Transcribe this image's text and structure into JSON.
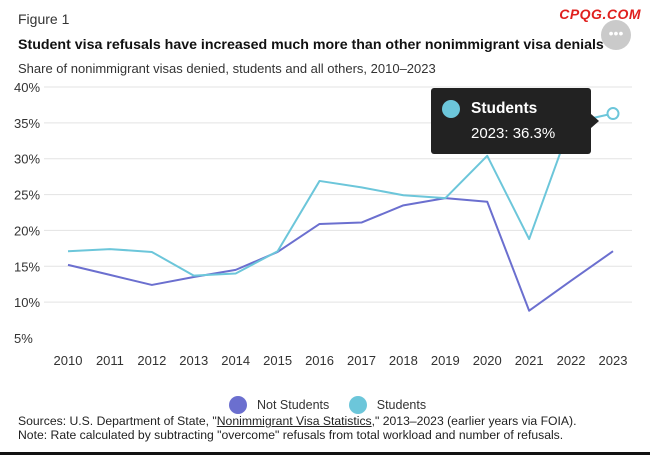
{
  "header": {
    "figure_label": "Figure 1",
    "watermark": "CPQG.COM",
    "title": "Student visa refusals have increased much more than other nonimmigrant visa denials",
    "subtitle": "Share of nonimmigrant visas denied, students and all others, 2010–2023",
    "menu_icon": "ellipsis-icon"
  },
  "colors": {
    "not_students": "#6b6fcf",
    "students": "#6cc6da",
    "grid": "#e3e3e3",
    "tooltip_bg": "#222222"
  },
  "tooltip": {
    "series": "Students",
    "value": "2023: 36.3%"
  },
  "legend": {
    "items": [
      "Not Students",
      "Students"
    ]
  },
  "footer": {
    "sources_prefix": "Sources: U.S. Department of State, \"",
    "sources_link": "Nonimmigrant Visa Statistics",
    "sources_suffix": ",\" 2013–2023 (earlier years via FOIA).",
    "note": "Note: Rate calculated by subtracting \"overcome\" refusals from total workload and number of refusals."
  },
  "chart_data": {
    "type": "line",
    "title": "Student visa refusals have increased much more than other nonimmigrant visa denials",
    "subtitle": "Share of nonimmigrant visas denied, students and all others, 2010–2023",
    "x": [
      2010,
      2011,
      2012,
      2013,
      2014,
      2015,
      2016,
      2017,
      2018,
      2019,
      2020,
      2021,
      2022,
      2023
    ],
    "ylim": [
      5,
      40
    ],
    "yticks": [
      5,
      10,
      15,
      20,
      25,
      30,
      35,
      40
    ],
    "ytick_labels": [
      "5%",
      "10%",
      "15%",
      "20%",
      "25%",
      "30%",
      "35%",
      "40%"
    ],
    "grid": "horizontal",
    "legend_position": "bottom",
    "series": [
      {
        "name": "Not Students",
        "values": [
          15.2,
          13.8,
          12.4,
          13.5,
          14.5,
          17.0,
          20.9,
          21.1,
          23.5,
          24.5,
          24.0,
          8.8,
          13.0,
          17.1
        ]
      },
      {
        "name": "Students",
        "values": [
          17.1,
          17.4,
          17.0,
          13.7,
          14.0,
          17.1,
          26.9,
          26.0,
          24.9,
          24.5,
          30.4,
          18.8,
          35.0,
          36.3
        ]
      }
    ]
  }
}
